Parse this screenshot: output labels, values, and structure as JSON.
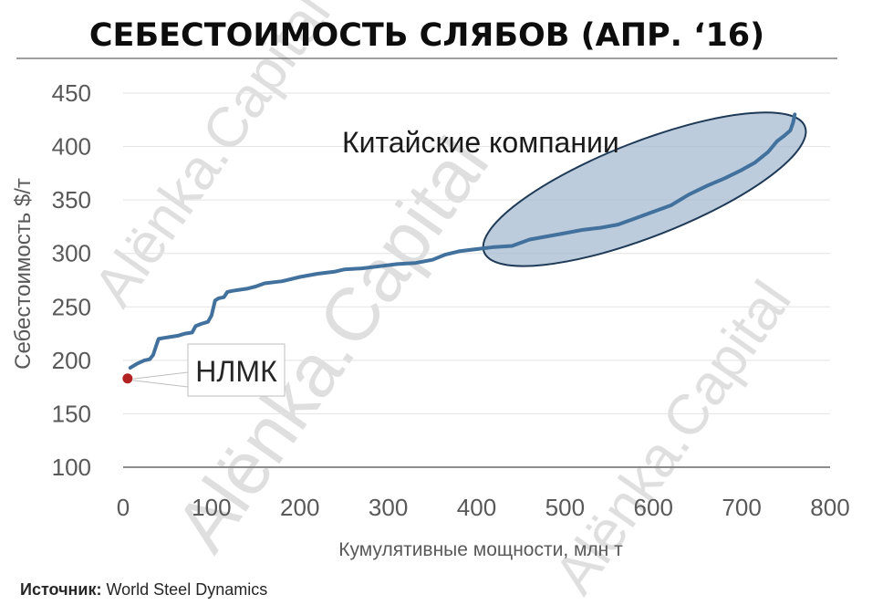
{
  "chart_data": {
    "type": "line",
    "title": "СЕБЕСТОИМОСТЬ СЛЯБОВ (АПР. ‘16)",
    "xlabel": "Кумулятивные мощности, млн т",
    "ylabel": "Себестоимость $/т",
    "xlim": [
      0,
      800
    ],
    "ylim": [
      100,
      450
    ],
    "xticks": [
      0,
      100,
      200,
      300,
      400,
      500,
      600,
      700,
      800
    ],
    "yticks": [
      100,
      150,
      200,
      250,
      300,
      350,
      400,
      450
    ],
    "grid": "horizontal",
    "series": [
      {
        "color": "#41719c",
        "points": [
          [
            8,
            193
          ],
          [
            16,
            197
          ],
          [
            24,
            200
          ],
          [
            30,
            201
          ],
          [
            34,
            205
          ],
          [
            38,
            215
          ],
          [
            40,
            220
          ],
          [
            46,
            221
          ],
          [
            54,
            222
          ],
          [
            62,
            223
          ],
          [
            70,
            225
          ],
          [
            78,
            226
          ],
          [
            82,
            232
          ],
          [
            88,
            234
          ],
          [
            96,
            236
          ],
          [
            100,
            242
          ],
          [
            104,
            256
          ],
          [
            108,
            258
          ],
          [
            114,
            259
          ],
          [
            118,
            264
          ],
          [
            124,
            265
          ],
          [
            132,
            266
          ],
          [
            140,
            267
          ],
          [
            150,
            269
          ],
          [
            160,
            272
          ],
          [
            170,
            273
          ],
          [
            180,
            274
          ],
          [
            200,
            278
          ],
          [
            220,
            281
          ],
          [
            240,
            283
          ],
          [
            250,
            285
          ],
          [
            270,
            286
          ],
          [
            290,
            288
          ],
          [
            310,
            290
          ],
          [
            330,
            291
          ],
          [
            350,
            294
          ],
          [
            365,
            299
          ],
          [
            380,
            302
          ],
          [
            400,
            304
          ],
          [
            420,
            306
          ],
          [
            440,
            307
          ],
          [
            460,
            313
          ],
          [
            480,
            316
          ],
          [
            500,
            319
          ],
          [
            520,
            322
          ],
          [
            540,
            324
          ],
          [
            560,
            327
          ],
          [
            580,
            333
          ],
          [
            600,
            339
          ],
          [
            620,
            345
          ],
          [
            640,
            355
          ],
          [
            660,
            363
          ],
          [
            680,
            370
          ],
          [
            700,
            378
          ],
          [
            715,
            385
          ],
          [
            730,
            395
          ],
          [
            740,
            405
          ],
          [
            748,
            410
          ],
          [
            755,
            415
          ],
          [
            758,
            422
          ],
          [
            760,
            430
          ]
        ]
      }
    ],
    "highlight_point": {
      "label": "НЛМК",
      "x": 5,
      "y": 183,
      "color": "#b22222"
    },
    "annotations": [
      {
        "text": "Китайские компании",
        "x_range": [
          420,
          760
        ],
        "y_range": [
          305,
          415
        ]
      }
    ]
  },
  "source": {
    "label": "Источник:",
    "text": "World Steel Dynamics"
  },
  "watermark": {
    "text": "Alёnka.Capital"
  }
}
